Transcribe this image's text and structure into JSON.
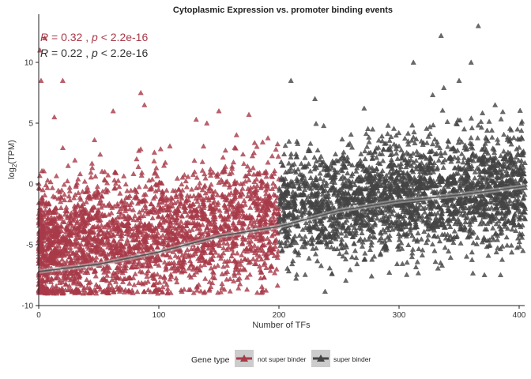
{
  "chart_data": {
    "type": "scatter",
    "title": "Cytoplasmic Expression vs. promoter binding events",
    "xlabel": "Number of TFs",
    "ylabel_main": "log",
    "ylabel_sub": "2",
    "ylabel_tail": "(TPM)",
    "xlim": [
      0,
      405
    ],
    "ylim": [
      -10,
      14
    ],
    "x_ticks": [
      0,
      100,
      200,
      300,
      400
    ],
    "y_ticks": [
      -10,
      -5,
      0,
      5,
      10
    ],
    "x_tick_labels": [
      "0",
      "100",
      "200",
      "300",
      "400"
    ],
    "y_tick_labels": [
      "-10",
      "-5",
      "0",
      "5",
      "10"
    ],
    "grid": false,
    "legend": {
      "position": "bottom",
      "title": "Gene type",
      "entries": [
        {
          "label": "not super binder",
          "color": "#A83A48"
        },
        {
          "label": "super binder",
          "color": "#444444"
        }
      ]
    },
    "annotations": [
      {
        "R": "0.32",
        "p": "< 2.2e-16",
        "color": "#A83A48"
      },
      {
        "R": "0.22",
        "p": "< 2.2e-16",
        "color": "#333333"
      }
    ],
    "series": [
      {
        "name": "not super binder",
        "color": "#A83A48",
        "x_range": [
          0,
          200
        ],
        "marker": "triangle",
        "outliers": [
          [
            2,
            8.5
          ],
          [
            20,
            8.5
          ],
          [
            13,
            5.5
          ],
          [
            62,
            6
          ],
          [
            85,
            7.5
          ],
          [
            88,
            6.5
          ],
          [
            140,
            5
          ],
          [
            150,
            6
          ],
          [
            175,
            5.7
          ],
          [
            5,
            12
          ],
          [
            1,
            11
          ]
        ],
        "trend": {
          "x": [
            0,
            50,
            100,
            150,
            200
          ],
          "y": [
            -7.2,
            -6.6,
            -5.6,
            -4.3,
            -3.5
          ]
        }
      },
      {
        "name": "super binder",
        "color": "#444444",
        "x_range": [
          200,
          405
        ],
        "marker": "triangle",
        "outliers": [
          [
            210,
            8.5
          ],
          [
            215,
            3.5
          ],
          [
            230,
            7
          ],
          [
            312,
            10
          ],
          [
            335,
            12.2
          ],
          [
            350,
            8.5
          ],
          [
            360,
            10
          ],
          [
            366,
            13
          ],
          [
            380,
            6.5
          ],
          [
            400,
            3
          ]
        ],
        "trend": {
          "x": [
            200,
            250,
            300,
            350,
            405
          ],
          "y": [
            -3.5,
            -2.2,
            -1.4,
            -0.9,
            -0.2
          ]
        }
      }
    ]
  }
}
